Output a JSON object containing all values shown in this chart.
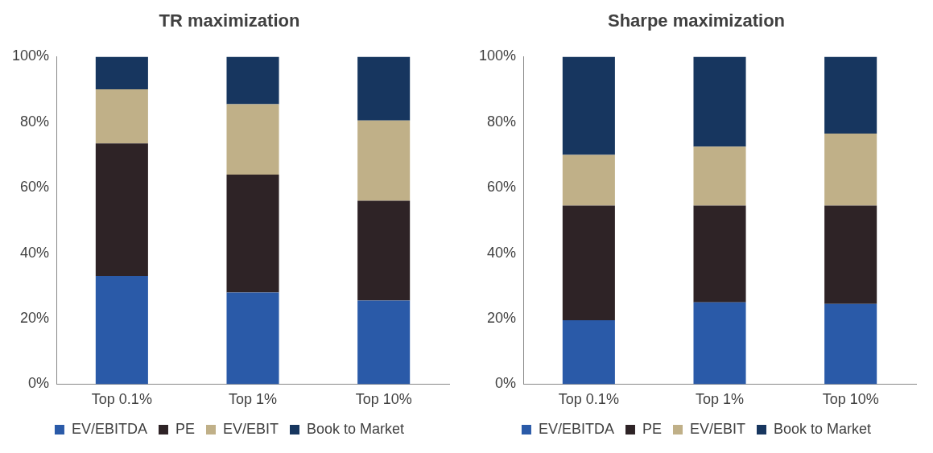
{
  "chart_data": [
    {
      "type": "bar",
      "title": "TR maximization",
      "categories": [
        "Top 0.1%",
        "Top 1%",
        "Top 10%"
      ],
      "stacked": true,
      "ylim": [
        0,
        100
      ],
      "yticks": [
        {
          "value": 0,
          "label": "0%"
        },
        {
          "value": 20,
          "label": "20%"
        },
        {
          "value": 40,
          "label": "40%"
        },
        {
          "value": 60,
          "label": "60%"
        },
        {
          "value": 80,
          "label": "80%"
        },
        {
          "value": 100,
          "label": "100%"
        }
      ],
      "grid": false,
      "legend": "bottom",
      "series": [
        {
          "name": "EV/EBITDA",
          "color": "#2a5aa8",
          "values": [
            33,
            28,
            25.5
          ]
        },
        {
          "name": "PE",
          "color": "#2e2326",
          "values": [
            40.5,
            36,
            30.5
          ]
        },
        {
          "name": "EV/EBIT",
          "color": "#c0b088",
          "values": [
            16.5,
            21.5,
            24.5
          ]
        },
        {
          "name": "Book to Market",
          "color": "#17365f",
          "values": [
            10,
            14.5,
            19.5
          ]
        }
      ]
    },
    {
      "type": "bar",
      "title": "Sharpe maximization",
      "categories": [
        "Top 0.1%",
        "Top 1%",
        "Top 10%"
      ],
      "stacked": true,
      "ylim": [
        0,
        100
      ],
      "yticks": [
        {
          "value": 0,
          "label": "0%"
        },
        {
          "value": 20,
          "label": "20%"
        },
        {
          "value": 40,
          "label": "40%"
        },
        {
          "value": 60,
          "label": "60%"
        },
        {
          "value": 80,
          "label": "80%"
        },
        {
          "value": 100,
          "label": "100%"
        }
      ],
      "grid": false,
      "legend": "bottom",
      "series": [
        {
          "name": "EV/EBITDA",
          "color": "#2a5aa8",
          "values": [
            19.5,
            25,
            24.5
          ]
        },
        {
          "name": "PE",
          "color": "#2e2326",
          "values": [
            35,
            29.5,
            30
          ]
        },
        {
          "name": "EV/EBIT",
          "color": "#c0b088",
          "values": [
            15.5,
            18,
            22
          ]
        },
        {
          "name": "Book to Market",
          "color": "#17365f",
          "values": [
            30,
            27.5,
            23.5
          ]
        }
      ]
    }
  ]
}
